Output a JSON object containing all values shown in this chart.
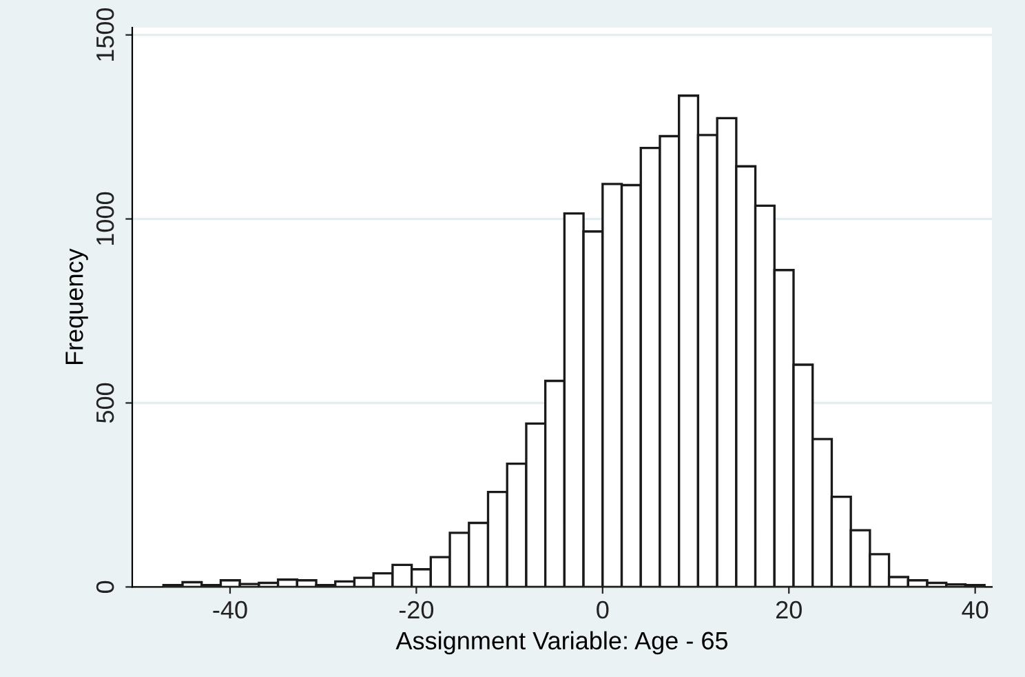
{
  "chart_data": {
    "type": "histogram",
    "xlabel": "Assignment Variable: Age - 65",
    "ylabel": "Frequency",
    "bins": [
      -47.15,
      -45.1,
      -43.05,
      -41,
      -38.95,
      -36.9,
      -34.85,
      -32.8,
      -30.75,
      -28.7,
      -26.65,
      -24.6,
      -22.55,
      -20.5,
      -18.45,
      -16.4,
      -14.35,
      -12.3,
      -10.25,
      -8.2,
      -6.15,
      -4.1,
      -2.05,
      0,
      2.05,
      4.1,
      6.15,
      8.2,
      10.25,
      12.3,
      14.35,
      16.4,
      18.45,
      20.5,
      22.55,
      24.6,
      26.65,
      28.7,
      30.75,
      32.8,
      34.85,
      36.9,
      38.95,
      41
    ],
    "values": [
      5,
      13,
      5,
      18,
      8,
      11,
      20,
      18,
      5,
      15,
      25,
      37,
      60,
      48,
      81,
      147,
      174,
      258,
      335,
      444,
      560,
      1015,
      966,
      1095,
      1092,
      1193,
      1225,
      1335,
      1228,
      1274,
      1143,
      1036,
      861,
      604,
      402,
      245,
      154,
      89,
      27,
      18,
      11,
      7,
      5
    ],
    "color": "#ffffff",
    "xlim": [
      -50.5,
      41.8
    ],
    "xticks": [
      -40,
      -20,
      0,
      20,
      40
    ],
    "ylim": [
      0,
      1520
    ],
    "yticks": [
      0,
      500,
      1000,
      1500
    ],
    "grid": "y"
  }
}
